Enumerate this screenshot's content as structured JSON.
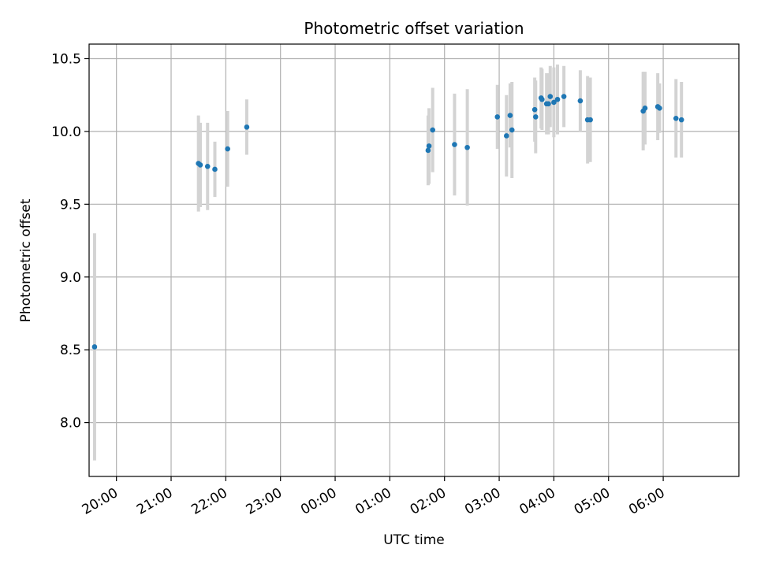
{
  "chart_data": {
    "type": "scatter",
    "title": "Photometric offset variation",
    "xlabel": "UTC time",
    "ylabel": "Photometric offset",
    "x_axis_type": "time",
    "xlim": [
      "19:30",
      "07:23"
    ],
    "ylim": [
      7.63,
      10.6
    ],
    "grid": true,
    "x_ticks": [
      "20:00",
      "21:00",
      "22:00",
      "23:00",
      "00:00",
      "01:00",
      "02:00",
      "03:00",
      "04:00",
      "05:00",
      "06:00"
    ],
    "y_ticks": [
      "8.0",
      "8.5",
      "9.0",
      "9.5",
      "10.0",
      "10.5"
    ],
    "y_tick_values": [
      8.0,
      8.5,
      9.0,
      9.5,
      10.0,
      10.5
    ],
    "colors": {
      "point": "#1f77b4",
      "errorbar": "#d3d3d3",
      "grid": "#b0b0b0"
    },
    "series": [
      {
        "points": [
          {
            "x": "19:36",
            "y": 8.52,
            "err": 0.78
          },
          {
            "x": "21:30",
            "y": 9.78,
            "err": 0.33
          },
          {
            "x": "21:32",
            "y": 9.77,
            "err": 0.29
          },
          {
            "x": "21:40",
            "y": 9.76,
            "err": 0.3
          },
          {
            "x": "21:48",
            "y": 9.74,
            "err": 0.19
          },
          {
            "x": "22:02",
            "y": 9.88,
            "err": 0.26
          },
          {
            "x": "22:23",
            "y": 10.03,
            "err": 0.19
          },
          {
            "x": "01:42",
            "y": 9.87,
            "err": 0.24
          },
          {
            "x": "01:43",
            "y": 9.9,
            "err": 0.26
          },
          {
            "x": "01:47",
            "y": 10.01,
            "err": 0.29
          },
          {
            "x": "02:11",
            "y": 9.91,
            "err": 0.35
          },
          {
            "x": "02:25",
            "y": 9.89,
            "err": 0.4
          },
          {
            "x": "02:58",
            "y": 10.1,
            "err": 0.22
          },
          {
            "x": "03:08",
            "y": 9.97,
            "err": 0.28
          },
          {
            "x": "03:12",
            "y": 10.11,
            "err": 0.22
          },
          {
            "x": "03:14",
            "y": 10.01,
            "err": 0.33
          },
          {
            "x": "03:39",
            "y": 10.15,
            "err": 0.22
          },
          {
            "x": "03:40",
            "y": 10.1,
            "err": 0.25
          },
          {
            "x": "03:46",
            "y": 10.23,
            "err": 0.21
          },
          {
            "x": "03:47",
            "y": 10.22,
            "err": 0.21
          },
          {
            "x": "03:52",
            "y": 10.19,
            "err": 0.21
          },
          {
            "x": "03:54",
            "y": 10.19,
            "err": 0.21
          },
          {
            "x": "03:56",
            "y": 10.24,
            "err": 0.21
          },
          {
            "x": "04:00",
            "y": 10.2,
            "err": 0.24
          },
          {
            "x": "04:04",
            "y": 10.22,
            "err": 0.24
          },
          {
            "x": "04:11",
            "y": 10.24,
            "err": 0.21
          },
          {
            "x": "04:29",
            "y": 10.21,
            "err": 0.21
          },
          {
            "x": "04:37",
            "y": 10.08,
            "err": 0.3
          },
          {
            "x": "04:40",
            "y": 10.08,
            "err": 0.29
          },
          {
            "x": "05:38",
            "y": 10.14,
            "err": 0.27
          },
          {
            "x": "05:40",
            "y": 10.16,
            "err": 0.25
          },
          {
            "x": "05:54",
            "y": 10.17,
            "err": 0.23
          },
          {
            "x": "05:56",
            "y": 10.16,
            "err": 0.17
          },
          {
            "x": "06:14",
            "y": 10.09,
            "err": 0.27
          },
          {
            "x": "06:20",
            "y": 10.08,
            "err": 0.26
          }
        ]
      }
    ]
  }
}
